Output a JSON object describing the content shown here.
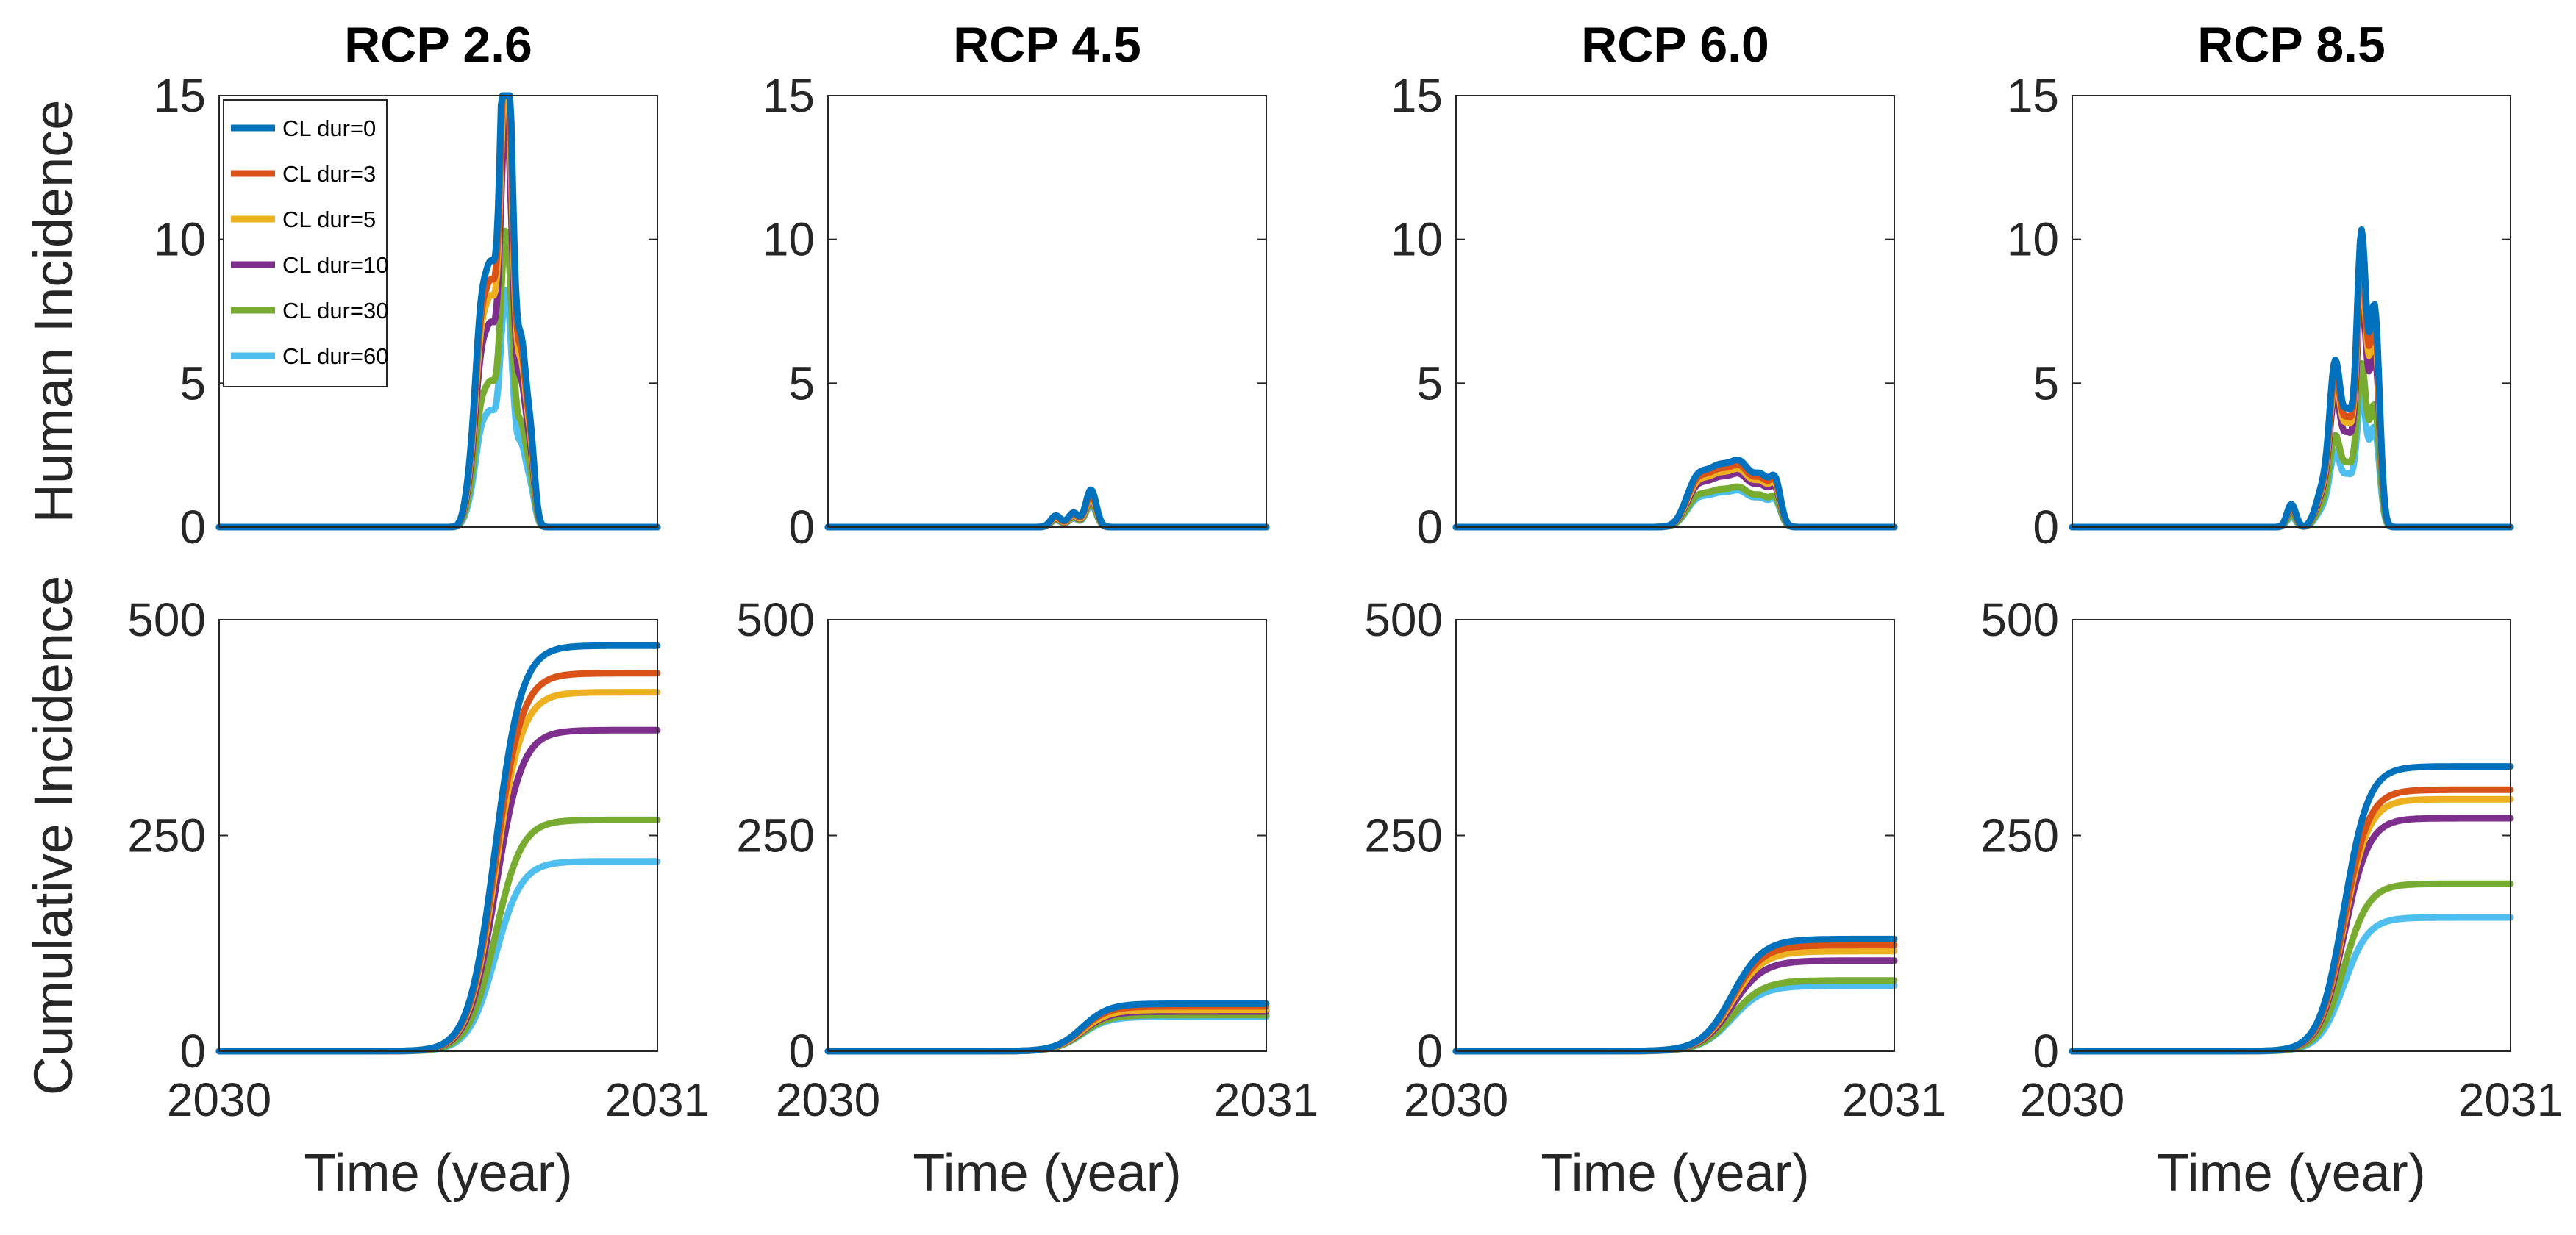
{
  "chart_data": {
    "type": "line",
    "layout": "2x4 grid",
    "legend": {
      "placement": "top-left of first panel",
      "entries": [
        "CL dur=0",
        "CL dur=3",
        "CL dur=5",
        "CL dur=10",
        "CL dur=30",
        "CL dur=60"
      ]
    },
    "series_colors": [
      "#0072BD",
      "#D95319",
      "#EDB120",
      "#7E2F8E",
      "#77AC30",
      "#4DBEEE"
    ],
    "scenarios": [
      "RCP 2.6",
      "RCP 4.5",
      "RCP 6.0",
      "RCP 8.5"
    ],
    "rows": [
      {
        "name": "incidence",
        "ylabel": "Human Incidence",
        "ylim": [
          0,
          15
        ],
        "yticks": [
          "0",
          "5",
          "10",
          "15"
        ],
        "xlabel": "",
        "xticks": []
      },
      {
        "name": "cumulative",
        "ylabel": "Cumulative Incidence",
        "ylim": [
          0,
          500
        ],
        "yticks": [
          "0",
          "250",
          "500"
        ],
        "xlabel": "Time (year)",
        "xticks": [
          "2030",
          "2031"
        ]
      }
    ],
    "xlim": [
      2030,
      2031
    ],
    "panels": [
      {
        "title": "RCP 2.6",
        "incidence": {
          "peaks": [
            [
              0.57,
              0.8,
              0.012
            ],
            [
              0.6,
              7.5,
              0.016
            ],
            [
              0.625,
              6.0,
              0.012
            ],
            [
              0.65,
              13.5,
              0.011
            ],
            [
              0.665,
              9.5,
              0.011
            ],
            [
              0.69,
              5.5,
              0.01
            ],
            [
              0.71,
              3.0,
              0.01
            ]
          ],
          "scales": [
            1.0,
            0.93,
            0.87,
            0.77,
            0.55,
            0.44
          ]
        },
        "cumulative": {
          "finals": [
            470,
            438,
            416,
            372,
            268,
            220
          ],
          "center": 0.63,
          "width": 0.03
        }
      },
      {
        "title": "RCP 4.5",
        "incidence": {
          "peaks": [
            [
              0.52,
              0.4,
              0.012
            ],
            [
              0.56,
              0.5,
              0.012
            ],
            [
              0.6,
              1.3,
              0.012
            ]
          ],
          "scales": [
            1.0,
            0.9,
            0.8,
            0.75,
            0.65,
            0.6
          ]
        },
        "cumulative": {
          "finals": [
            55,
            52,
            48,
            46,
            42,
            40
          ],
          "center": 0.58,
          "width": 0.03
        }
      },
      {
        "title": "RCP 6.0",
        "incidence": {
          "peaks": [
            [
              0.55,
              1.6,
              0.025
            ],
            [
              0.6,
              1.7,
              0.025
            ],
            [
              0.65,
              2.0,
              0.025
            ],
            [
              0.7,
              1.5,
              0.02
            ],
            [
              0.73,
              1.2,
              0.012
            ]
          ],
          "scales": [
            1.0,
            0.93,
            0.87,
            0.8,
            0.6,
            0.55
          ]
        },
        "cumulative": {
          "finals": [
            130,
            123,
            116,
            105,
            82,
            76
          ],
          "center": 0.63,
          "width": 0.035
        }
      },
      {
        "title": "RCP 8.5",
        "incidence": {
          "peaks": [
            [
              0.5,
              0.8,
              0.01
            ],
            [
              0.57,
              1.2,
              0.015
            ],
            [
              0.6,
              5.5,
              0.013
            ],
            [
              0.63,
              3.5,
              0.012
            ],
            [
              0.66,
              10.0,
              0.011
            ],
            [
              0.69,
              7.5,
              0.011
            ]
          ],
          "scales": [
            1.0,
            0.93,
            0.88,
            0.8,
            0.55,
            0.45
          ]
        },
        "cumulative": {
          "finals": [
            330,
            303,
            292,
            270,
            194,
            155
          ],
          "center": 0.62,
          "width": 0.028
        }
      }
    ]
  }
}
